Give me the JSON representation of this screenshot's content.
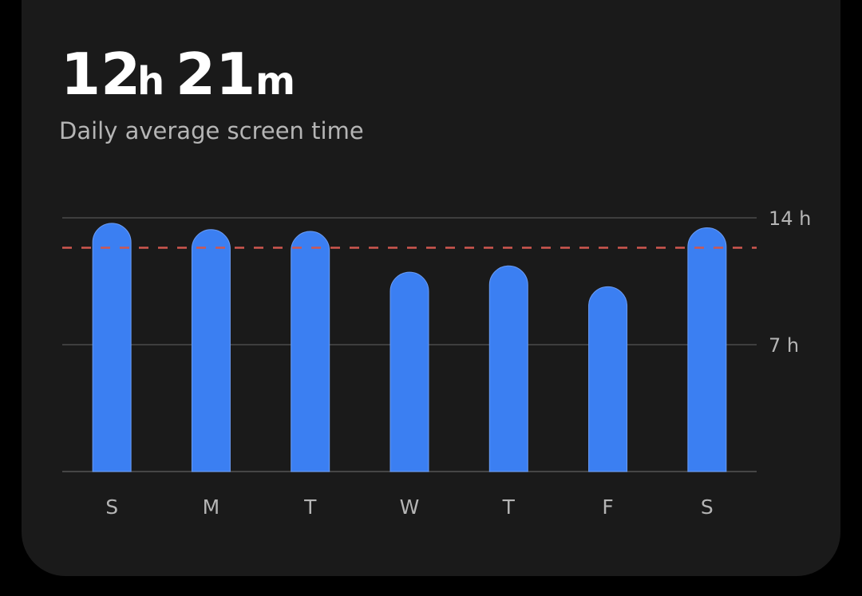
{
  "header": {
    "hours": "12",
    "hours_unit": "h",
    "minutes": "21",
    "minutes_unit": "m",
    "subtitle": "Daily average screen time"
  },
  "chart_data": {
    "type": "bar",
    "categories": [
      "S",
      "M",
      "T",
      "W",
      "T",
      "F",
      "S"
    ],
    "values": [
      13.7,
      13.35,
      13.25,
      11.0,
      11.35,
      10.2,
      13.45
    ],
    "color": "#3b7ff2",
    "average": 12.35,
    "average_color": "#d0574f",
    "ylim": [
      0,
      14
    ],
    "yticks": [
      {
        "value": 7,
        "label": "7 h"
      },
      {
        "value": 14,
        "label": "14 h"
      }
    ],
    "grid": true
  }
}
